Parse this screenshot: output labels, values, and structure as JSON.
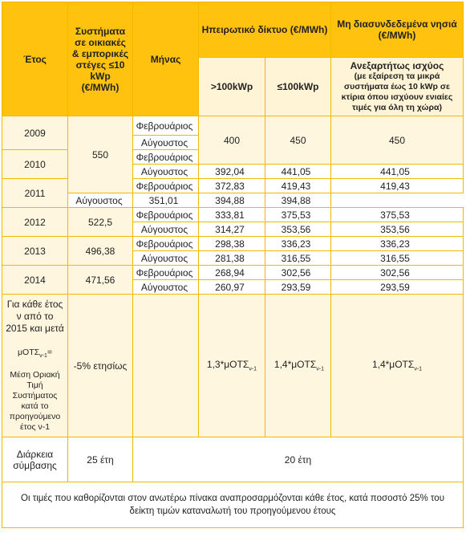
{
  "header": {
    "year": "Έτος",
    "residential": "Συστήματα σε οικιακές & εμπορικές στέγες ≤10 kWp (€/MWh)",
    "month": "Μήνας",
    "mainland": "Ηπειρωτικό δίκτυο (€/MWh)",
    "islands": "Μη διασυνδεδεμένα νησιά (€/MWh)",
    "mainland_gt100": ">100kWp",
    "mainland_le100": "≤100kWp",
    "islands_note_title": "Ανεξαρτήτως ισχύος",
    "islands_note": "(με εξαίρεση τα μικρά συστήματα έως 10 kWp σε κτίρια όπου ισχύουν ενιαίες τιμές για όλη τη χώρα)"
  },
  "months": {
    "feb": "Φεβρουάριος",
    "aug": "Αύγουστος"
  },
  "years": [
    "2009",
    "2010",
    "2011",
    "2012",
    "2013",
    "2014"
  ],
  "residential_values": [
    "550",
    "522,5",
    "496,38",
    "471,56"
  ],
  "rows": [
    {
      "gt100": "400",
      "le100": "450",
      "islands": "450"
    },
    {
      "gt100": "392,04",
      "le100": "441,05",
      "islands": "441,05"
    },
    {
      "gt100": "372,83",
      "le100": "419,43",
      "islands": "419,43"
    },
    {
      "gt100": "351,01",
      "le100": "394,88",
      "islands": "394,88"
    },
    {
      "gt100": "333,81",
      "le100": "375,53",
      "islands": "375,53"
    },
    {
      "gt100": "314,27",
      "le100": "353,56",
      "islands": "353,56"
    },
    {
      "gt100": "298,38",
      "le100": "336,23",
      "islands": "336,23"
    },
    {
      "gt100": "281,38",
      "le100": "316,55",
      "islands": "316,55"
    },
    {
      "gt100": "268,94",
      "le100": "302,56",
      "islands": "302,56"
    },
    {
      "gt100": "260,97",
      "le100": "293,59",
      "islands": "293,59"
    }
  ],
  "future": {
    "label_main": "Για κάθε έτος ν από το 2015 και μετά",
    "label_def_prefix": "μΟΤΣ",
    "label_def_sub": "ν-1",
    "label_def_suffix": "=",
    "label_def_text": "Μέση Οριακή Τιμή Συστήματος κατά το προηγούμενο έτος ν-1",
    "residential": "-5% ετησίως",
    "gt100_prefix": "1,3*μΟΤΣ",
    "le100_prefix": "1,4*μΟΤΣ",
    "islands_prefix": "1,4*μΟΤΣ",
    "sub": "ν-1"
  },
  "duration": {
    "label": "Διάρκεια σύμβασης",
    "residential": "25 έτη",
    "others": "20 έτη"
  },
  "footnote": "Οι τιμές που καθορίζονται στον ανωτέρω πίνακα αναπροσαρμόζονται κάθε έτος, κατά ποσοστό 25% του δείκτη τιμών καταναλωτή του προηγούμενου έτους"
}
